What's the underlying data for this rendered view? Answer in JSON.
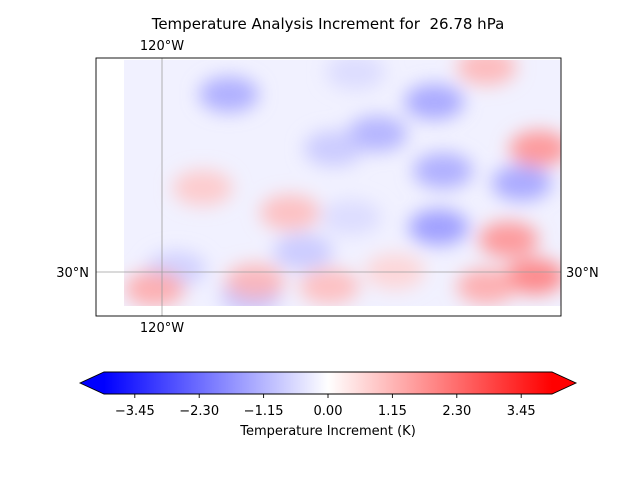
{
  "chart_data": {
    "type": "heatmap",
    "title": "Temperature Analysis Increment for  26.78 hPa",
    "projection": "map",
    "gridlines": {
      "lon": [
        {
          "value": -120,
          "label": "120°W"
        }
      ],
      "lat": [
        {
          "value": 30,
          "label": "30°N"
        }
      ]
    },
    "colorbar": {
      "label": "Temperature Increment (K)",
      "colormap": "bwr",
      "vmin": -4.0,
      "vmax": 4.0,
      "extend": "both",
      "ticks": [
        {
          "value": -3.45,
          "label": "−3.45"
        },
        {
          "value": -2.3,
          "label": "−2.30"
        },
        {
          "value": -1.15,
          "label": "−1.15"
        },
        {
          "value": 0.0,
          "label": "0.00"
        },
        {
          "value": 1.15,
          "label": "1.15"
        },
        {
          "value": 2.3,
          "label": "2.30"
        },
        {
          "value": 3.45,
          "label": "3.45"
        }
      ]
    },
    "field_blobs": [
      {
        "x": 0.24,
        "y": 0.14,
        "v": -1.4
      },
      {
        "x": 0.53,
        "y": 0.05,
        "v": -0.6
      },
      {
        "x": 0.58,
        "y": 0.3,
        "v": -1.3
      },
      {
        "x": 0.48,
        "y": 0.36,
        "v": -0.9
      },
      {
        "x": 0.71,
        "y": 0.17,
        "v": -1.5
      },
      {
        "x": 0.73,
        "y": 0.45,
        "v": -1.4
      },
      {
        "x": 0.91,
        "y": 0.5,
        "v": -1.5
      },
      {
        "x": 0.72,
        "y": 0.68,
        "v": -1.7
      },
      {
        "x": 0.41,
        "y": 0.78,
        "v": -0.9
      },
      {
        "x": 0.52,
        "y": 0.64,
        "v": -0.6
      },
      {
        "x": 0.12,
        "y": 0.85,
        "v": -0.8
      },
      {
        "x": 0.29,
        "y": 0.96,
        "v": -1.0
      },
      {
        "x": 0.38,
        "y": 0.62,
        "v": 1.1
      },
      {
        "x": 0.18,
        "y": 0.52,
        "v": 0.9
      },
      {
        "x": 0.3,
        "y": 0.9,
        "v": 1.2
      },
      {
        "x": 0.47,
        "y": 0.92,
        "v": 1.1
      },
      {
        "x": 0.95,
        "y": 0.36,
        "v": 1.8
      },
      {
        "x": 0.88,
        "y": 0.73,
        "v": 1.8
      },
      {
        "x": 0.94,
        "y": 0.88,
        "v": 2.1
      },
      {
        "x": 0.83,
        "y": 0.92,
        "v": 1.4
      },
      {
        "x": 0.83,
        "y": 0.03,
        "v": 1.2
      },
      {
        "x": 0.07,
        "y": 0.93,
        "v": 1.4
      },
      {
        "x": 0.62,
        "y": 0.86,
        "v": 0.7
      }
    ]
  }
}
